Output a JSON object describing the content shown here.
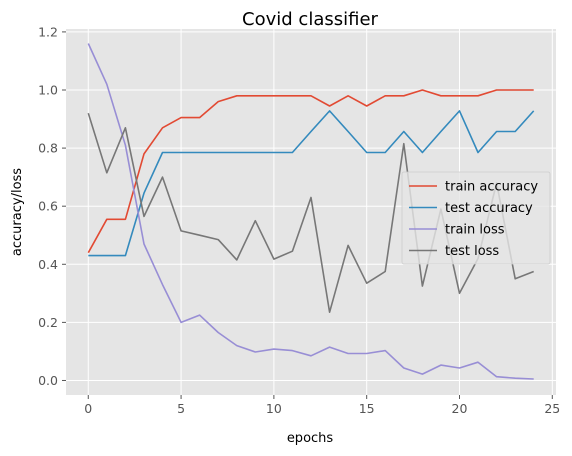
{
  "chart_data": {
    "type": "line",
    "title": "Covid classifier",
    "xlabel": "epochs",
    "ylabel": "accuracy/loss",
    "xlim": [
      -1.2,
      25.2
    ],
    "ylim": [
      -0.05,
      1.21
    ],
    "xticks": [
      0,
      5,
      10,
      15,
      20,
      25
    ],
    "yticks": [
      0.0,
      0.2,
      0.4,
      0.6,
      0.8,
      1.0,
      1.2
    ],
    "grid": true,
    "background": "#e5e5e5",
    "legend_position": "center-right",
    "x": [
      0,
      1,
      2,
      3,
      4,
      5,
      6,
      7,
      8,
      9,
      10,
      11,
      12,
      13,
      14,
      15,
      16,
      17,
      18,
      19,
      20,
      21,
      22,
      23,
      24
    ],
    "series": [
      {
        "name": "train accuracy",
        "color": "#e24a33",
        "values": [
          0.44,
          0.555,
          0.555,
          0.78,
          0.87,
          0.905,
          0.905,
          0.96,
          0.98,
          0.98,
          0.98,
          0.98,
          0.98,
          0.945,
          0.98,
          0.945,
          0.98,
          0.98,
          1.0,
          0.98,
          0.98,
          0.98,
          1.0,
          1.0,
          1.0
        ]
      },
      {
        "name": "test accuracy",
        "color": "#348abd",
        "values": [
          0.43,
          0.43,
          0.43,
          0.645,
          0.785,
          0.785,
          0.785,
          0.785,
          0.785,
          0.785,
          0.785,
          0.785,
          0.857,
          0.928,
          0.857,
          0.785,
          0.785,
          0.857,
          0.785,
          0.857,
          0.928,
          0.785,
          0.857,
          0.857,
          0.928
        ]
      },
      {
        "name": "train loss",
        "color": "#988ed5",
        "values": [
          1.16,
          1.02,
          0.81,
          0.47,
          0.33,
          0.2,
          0.225,
          0.165,
          0.12,
          0.098,
          0.108,
          0.103,
          0.085,
          0.115,
          0.093,
          0.093,
          0.103,
          0.043,
          0.022,
          0.053,
          0.043,
          0.063,
          0.013,
          0.008,
          0.005
        ]
      },
      {
        "name": "test loss",
        "color": "#777777",
        "values": [
          0.92,
          0.715,
          0.87,
          0.565,
          0.7,
          0.515,
          0.5,
          0.485,
          0.415,
          0.55,
          0.418,
          0.445,
          0.63,
          0.235,
          0.465,
          0.335,
          0.375,
          0.815,
          0.325,
          0.59,
          0.3,
          0.42,
          0.68,
          0.35,
          0.375
        ]
      }
    ]
  }
}
